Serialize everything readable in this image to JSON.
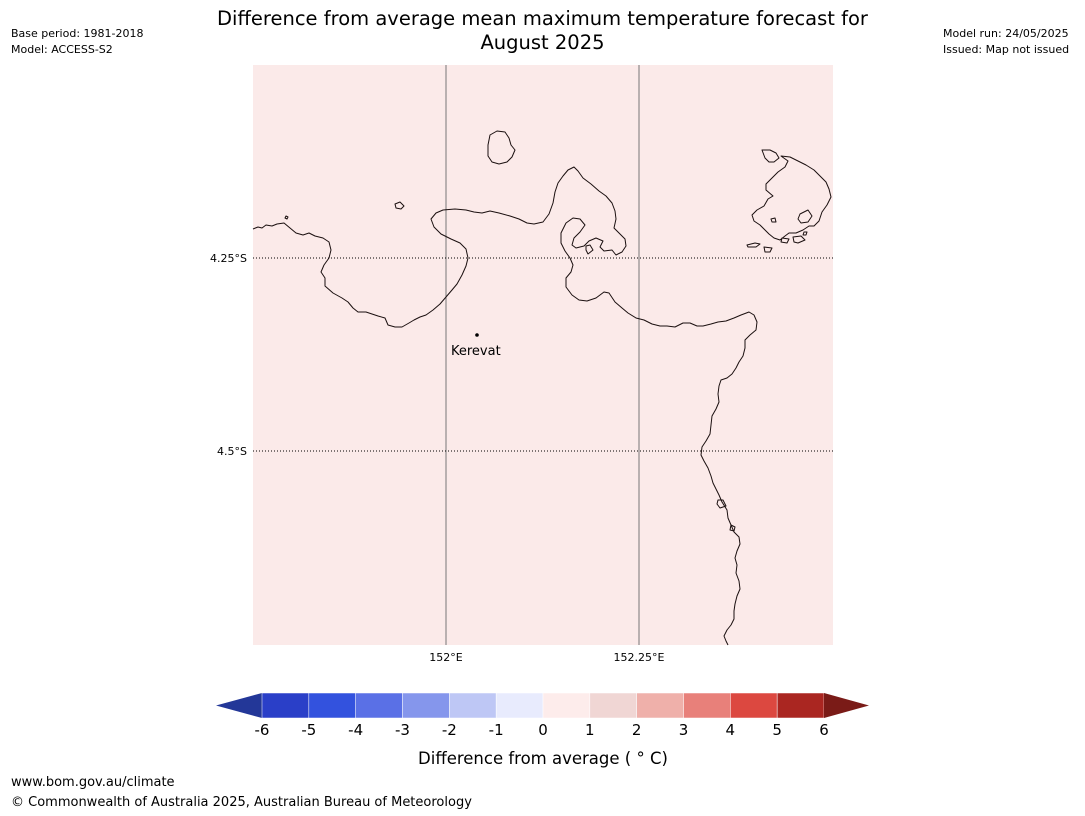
{
  "title": {
    "line1": "Difference from average mean maximum temperature forecast for",
    "line2": "August 2025"
  },
  "meta_left": {
    "base_period": "Base period: 1981-2018",
    "model": "Model: ACCESS-S2"
  },
  "meta_right": {
    "model_run": "Model run: 24/05/2025",
    "issued": "Issued: Map not issued"
  },
  "map": {
    "background_fill": "#fbeae9",
    "coastline_color": "#1a0f0f",
    "gridline_color": "#777777",
    "lat_labels": [
      "4.25°S",
      "4.5°S"
    ],
    "lon_labels": [
      "152°E",
      "152.25°E"
    ],
    "place": {
      "name": "Kerevat"
    }
  },
  "colorbar": {
    "ticks": [
      "-6",
      "-5",
      "-4",
      "-3",
      "-2",
      "-1",
      "0",
      "1",
      "2",
      "3",
      "4",
      "5",
      "6"
    ],
    "colors": [
      "#233798",
      "#2a3fc8",
      "#3352de",
      "#5a70e6",
      "#8596ec",
      "#bec7f5",
      "#e8ebfd",
      "#fdeceb",
      "#f0d6d4",
      "#efb0aa",
      "#e8807a",
      "#dc4840",
      "#aa2621",
      "#7a1b17"
    ],
    "label": "Difference from average ( ° C)"
  },
  "footer": {
    "url": "www.bom.gov.au/climate",
    "copyright": "© Commonwealth of Australia 2025, Australian Bureau of Meteorology"
  }
}
